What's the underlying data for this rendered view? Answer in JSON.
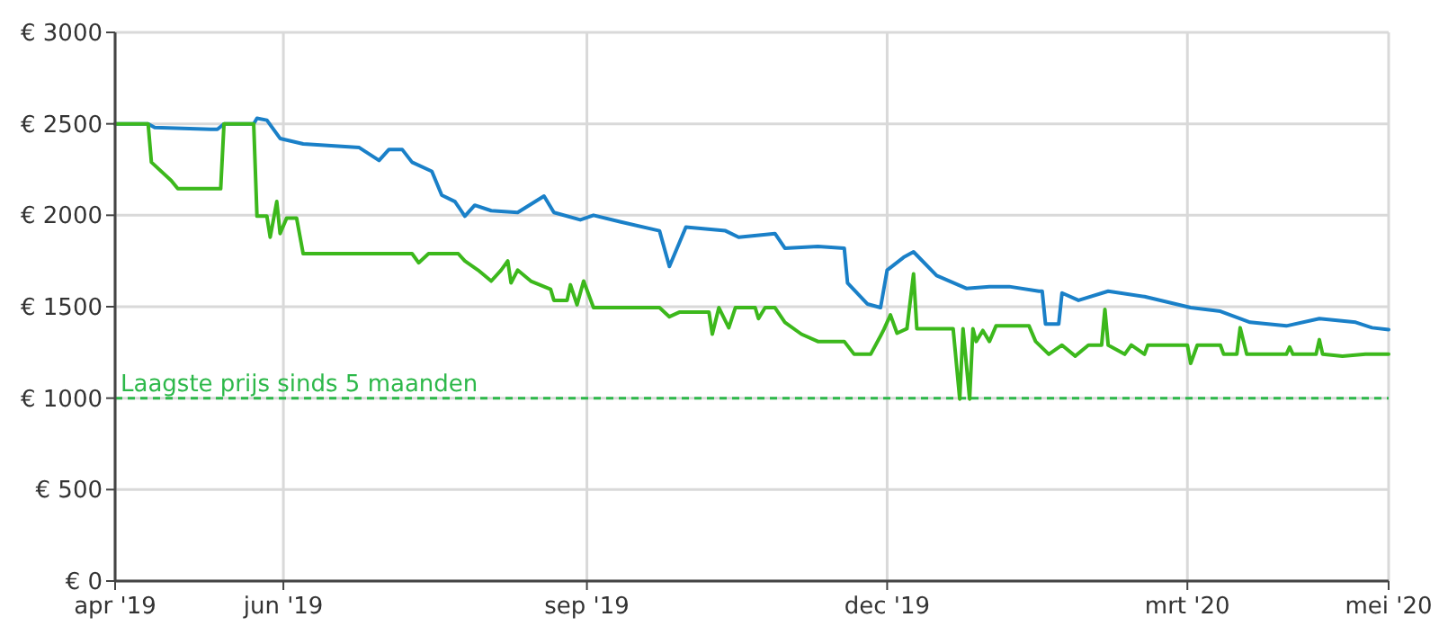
{
  "chart_data": {
    "type": "line",
    "xlim": [
      "2019-04-11",
      "2020-05-01"
    ],
    "xticks": [
      {
        "value": "2019-04-11",
        "label": "apr '19"
      },
      {
        "value": "2019-06-01",
        "label": "jun '19"
      },
      {
        "value": "2019-09-01",
        "label": "sep '19"
      },
      {
        "value": "2019-12-01",
        "label": "dec '19"
      },
      {
        "value": "2020-03-01",
        "label": "mrt '20"
      },
      {
        "value": "2020-05-01",
        "label": "mei '20"
      }
    ],
    "ylim": [
      0,
      3000
    ],
    "yticks": [
      {
        "value": 0,
        "label": "€ 0"
      },
      {
        "value": 500,
        "label": "€ 500"
      },
      {
        "value": 1000,
        "label": "€ 1000"
      },
      {
        "value": 1500,
        "label": "€ 1500"
      },
      {
        "value": 2000,
        "label": "€ 2000"
      },
      {
        "value": 2500,
        "label": "€ 2500"
      },
      {
        "value": 3000,
        "label": "€ 3000"
      }
    ],
    "grid": true,
    "marker": "none",
    "line_style": "solid",
    "series": [
      {
        "color": "#1a80c8",
        "x": [
          "2019-04-11",
          "2019-04-21",
          "2019-04-23",
          "2019-05-10",
          "2019-05-12",
          "2019-05-14",
          "2019-05-23",
          "2019-05-24",
          "2019-05-27",
          "2019-05-31",
          "2019-06-07",
          "2019-06-24",
          "2019-06-30",
          "2019-07-03",
          "2019-07-07",
          "2019-07-10",
          "2019-07-16",
          "2019-07-19",
          "2019-07-23",
          "2019-07-26",
          "2019-07-29",
          "2019-08-03",
          "2019-08-11",
          "2019-08-19",
          "2019-08-22",
          "2019-08-30",
          "2019-09-03",
          "2019-09-11",
          "2019-09-23",
          "2019-09-26",
          "2019-10-01",
          "2019-10-13",
          "2019-10-17",
          "2019-10-28",
          "2019-10-31",
          "2019-11-10",
          "2019-11-18",
          "2019-11-19",
          "2019-11-25",
          "2019-11-29",
          "2019-12-01",
          "2019-12-06",
          "2019-12-09",
          "2019-12-16",
          "2019-12-25",
          "2020-01-01",
          "2020-01-07",
          "2020-01-16",
          "2020-01-17",
          "2020-01-18",
          "2020-01-22",
          "2020-01-23",
          "2020-01-28",
          "2020-02-06",
          "2020-02-17",
          "2020-03-02",
          "2020-03-11",
          "2020-03-20",
          "2020-03-31",
          "2020-04-10",
          "2020-04-21",
          "2020-04-26",
          "2020-05-01"
        ],
        "values": [
          2500,
          2500,
          2480,
          2470,
          2470,
          2500,
          2500,
          2530,
          2520,
          2420,
          2390,
          2370,
          2300,
          2360,
          2360,
          2290,
          2240,
          2110,
          2075,
          1995,
          2055,
          2025,
          2015,
          2105,
          2015,
          1975,
          2000,
          1965,
          1915,
          1720,
          1935,
          1915,
          1880,
          1900,
          1820,
          1830,
          1820,
          1630,
          1515,
          1495,
          1700,
          1770,
          1800,
          1670,
          1600,
          1610,
          1610,
          1585,
          1585,
          1405,
          1405,
          1575,
          1535,
          1585,
          1555,
          1495,
          1475,
          1415,
          1395,
          1435,
          1415,
          1385,
          1375
        ]
      },
      {
        "color": "#3cb81c",
        "x": [
          "2019-04-11",
          "2019-04-21",
          "2019-04-22",
          "2019-04-28",
          "2019-04-30",
          "2019-05-13",
          "2019-05-14",
          "2019-05-23",
          "2019-05-24",
          "2019-05-27",
          "2019-05-28",
          "2019-05-30",
          "2019-05-31",
          "2019-06-02",
          "2019-06-05",
          "2019-06-07",
          "2019-07-10",
          "2019-07-12",
          "2019-07-15",
          "2019-07-24",
          "2019-07-26",
          "2019-07-30",
          "2019-08-03",
          "2019-08-06",
          "2019-08-08",
          "2019-08-09",
          "2019-08-11",
          "2019-08-15",
          "2019-08-21",
          "2019-08-22",
          "2019-08-26",
          "2019-08-27",
          "2019-08-29",
          "2019-08-31",
          "2019-09-03",
          "2019-09-23",
          "2019-09-26",
          "2019-09-29",
          "2019-10-08",
          "2019-10-09",
          "2019-10-11",
          "2019-10-14",
          "2019-10-16",
          "2019-10-22",
          "2019-10-23",
          "2019-10-25",
          "2019-10-28",
          "2019-10-31",
          "2019-11-05",
          "2019-11-10",
          "2019-11-18",
          "2019-11-21",
          "2019-11-26",
          "2019-11-29",
          "2019-11-30",
          "2019-12-02",
          "2019-12-04",
          "2019-12-07",
          "2019-12-09",
          "2019-12-10",
          "2019-12-21",
          "2019-12-23",
          "2019-12-24",
          "2019-12-26",
          "2019-12-27",
          "2019-12-28",
          "2019-12-30",
          "2020-01-01",
          "2020-01-03",
          "2020-01-13",
          "2020-01-15",
          "2020-01-19",
          "2020-01-23",
          "2020-01-27",
          "2020-01-31",
          "2020-02-04",
          "2020-02-05",
          "2020-02-06",
          "2020-02-11",
          "2020-02-13",
          "2020-02-17",
          "2020-02-18",
          "2020-03-01",
          "2020-03-02",
          "2020-03-04",
          "2020-03-11",
          "2020-03-12",
          "2020-03-16",
          "2020-03-17",
          "2020-03-19",
          "2020-03-31",
          "2020-04-01",
          "2020-04-02",
          "2020-04-09",
          "2020-04-10",
          "2020-04-11",
          "2020-04-17",
          "2020-04-24",
          "2020-05-01"
        ],
        "values": [
          2500,
          2500,
          2290,
          2190,
          2145,
          2145,
          2500,
          2500,
          1995,
          1995,
          1880,
          2075,
          1900,
          1985,
          1985,
          1790,
          1790,
          1740,
          1790,
          1790,
          1750,
          1700,
          1640,
          1700,
          1750,
          1630,
          1700,
          1640,
          1595,
          1535,
          1535,
          1620,
          1510,
          1640,
          1495,
          1495,
          1445,
          1470,
          1470,
          1350,
          1495,
          1385,
          1495,
          1495,
          1435,
          1495,
          1495,
          1415,
          1350,
          1310,
          1310,
          1240,
          1240,
          1340,
          1375,
          1455,
          1355,
          1380,
          1680,
          1380,
          1380,
          995,
          1380,
          995,
          1380,
          1310,
          1370,
          1310,
          1395,
          1395,
          1310,
          1240,
          1290,
          1230,
          1290,
          1290,
          1485,
          1290,
          1240,
          1290,
          1240,
          1290,
          1290,
          1190,
          1290,
          1290,
          1240,
          1240,
          1385,
          1240,
          1240,
          1280,
          1240,
          1240,
          1320,
          1240,
          1230,
          1240,
          1240
        ]
      }
    ],
    "ref_lines": [
      {
        "axis": "y",
        "value": 1000,
        "label": "Laagste prijs sinds 5 maanden",
        "color": "#2db84a",
        "line_style": "dashed"
      }
    ]
  }
}
